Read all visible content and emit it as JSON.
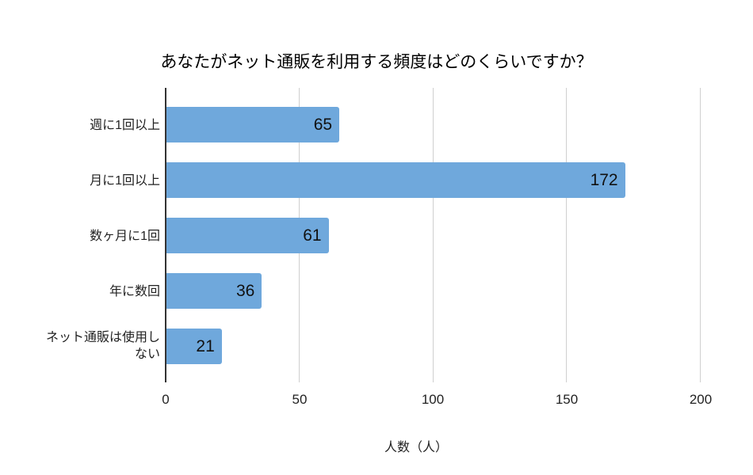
{
  "chart_data": {
    "type": "bar",
    "orientation": "horizontal",
    "title": "あなたがネット通販を利用する頻度はどのくらいですか？",
    "xlabel": "人数（人）",
    "ylabel": "",
    "categories": [
      "週に1回以上",
      "月に1回以上",
      "数ヶ月に1回",
      "年に数回",
      "ネット通販は使用しない"
    ],
    "values": [
      65,
      172,
      61,
      36,
      21
    ],
    "data_labels": [
      "65",
      "172",
      "61",
      "36",
      "21"
    ],
    "xlim": [
      0,
      200
    ],
    "x_ticks": [
      "0",
      "50",
      "100",
      "150",
      "200"
    ],
    "grid": true,
    "legend": null,
    "bar_color": "#6fa8dc"
  },
  "labels": {
    "cat_0": "週に1回以上",
    "cat_1": "月に1回以上",
    "cat_2": "数ヶ月に1回",
    "cat_3": "年に数回",
    "cat_4a": "ネット通販は使用し",
    "cat_4b": "ない"
  }
}
